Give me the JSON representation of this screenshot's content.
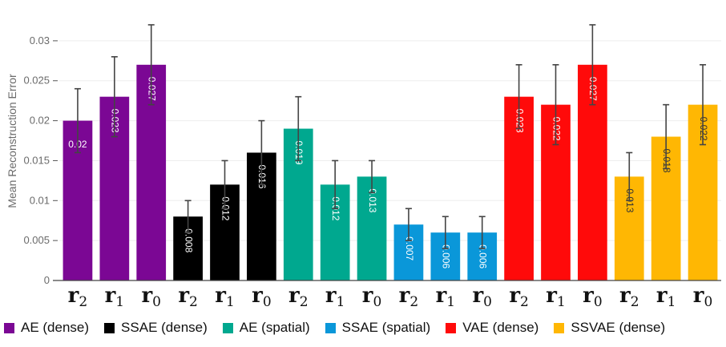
{
  "chart_data": {
    "type": "bar",
    "ylabel": "Mean Reconstruction Error",
    "xlabel": "",
    "ylim": [
      0,
      0.0335
    ],
    "yticks": [
      0,
      0.005,
      0.01,
      0.015,
      0.02,
      0.025,
      0.03
    ],
    "ytick_labels": [
      "0",
      "0.005",
      "0.01",
      "0.015",
      "0.02",
      "0.025",
      "0.03"
    ],
    "grid": true,
    "legend_position": "bottom",
    "groups": [
      {
        "name": "AE (dense)",
        "color": "#7b0794",
        "label_color": "#ffffff",
        "bars": [
          {
            "category": "r",
            "sub": "2",
            "value": 0.02,
            "label": "0.02",
            "err": 0.004,
            "label_rotated": false
          },
          {
            "category": "r",
            "sub": "1",
            "value": 0.023,
            "label": "0.023",
            "err": 0.005,
            "label_rotated": true
          },
          {
            "category": "r",
            "sub": "0",
            "value": 0.027,
            "label": "0.027",
            "err": 0.005,
            "label_rotated": true
          }
        ]
      },
      {
        "name": "SSAE (dense)",
        "color": "#000000",
        "label_color": "#ffffff",
        "bars": [
          {
            "category": "r",
            "sub": "2",
            "value": 0.008,
            "label": "0.008",
            "err": 0.002,
            "label_rotated": true
          },
          {
            "category": "r",
            "sub": "1",
            "value": 0.012,
            "label": "0.012",
            "err": 0.003,
            "label_rotated": true
          },
          {
            "category": "r",
            "sub": "0",
            "value": 0.016,
            "label": "0.016",
            "err": 0.004,
            "label_rotated": true
          }
        ]
      },
      {
        "name": "AE (spatial)",
        "color": "#00a88f",
        "label_color": "#ffffff",
        "bars": [
          {
            "category": "r",
            "sub": "2",
            "value": 0.019,
            "label": "0.019",
            "err": 0.004,
            "label_rotated": true
          },
          {
            "category": "r",
            "sub": "1",
            "value": 0.012,
            "label": "0.012",
            "err": 0.003,
            "label_rotated": true
          },
          {
            "category": "r",
            "sub": "0",
            "value": 0.013,
            "label": "0.013",
            "err": 0.002,
            "label_rotated": true
          }
        ]
      },
      {
        "name": "SSAE (spatial)",
        "color": "#0a97d9",
        "label_color": "#ffffff",
        "bars": [
          {
            "category": "r",
            "sub": "2",
            "value": 0.007,
            "label": "0.007",
            "err": 0.002,
            "label_rotated": true
          },
          {
            "category": "r",
            "sub": "1",
            "value": 0.006,
            "label": "0.006",
            "err": 0.002,
            "label_rotated": true
          },
          {
            "category": "r",
            "sub": "0",
            "value": 0.006,
            "label": "0.006",
            "err": 0.002,
            "label_rotated": true
          }
        ]
      },
      {
        "name": "VAE (dense)",
        "color": "#ff0a0a",
        "label_color": "#ffffff",
        "bars": [
          {
            "category": "r",
            "sub": "2",
            "value": 0.023,
            "label": "0.023",
            "err": 0.004,
            "label_rotated": true
          },
          {
            "category": "r",
            "sub": "1",
            "value": 0.022,
            "label": "0.022",
            "err": 0.005,
            "label_rotated": true
          },
          {
            "category": "r",
            "sub": "0",
            "value": 0.027,
            "label": "0.027",
            "err": 0.005,
            "label_rotated": true
          }
        ]
      },
      {
        "name": "SSVAE (dense)",
        "color": "#ffb703",
        "label_color": "#333333",
        "bars": [
          {
            "category": "r",
            "sub": "2",
            "value": 0.013,
            "label": "0.013",
            "err": 0.003,
            "label_rotated": true
          },
          {
            "category": "r",
            "sub": "1",
            "value": 0.018,
            "label": "0.018",
            "err": 0.004,
            "label_rotated": true
          },
          {
            "category": "r",
            "sub": "0",
            "value": 0.022,
            "label": "0.022",
            "err": 0.005,
            "label_rotated": true
          }
        ]
      }
    ]
  }
}
